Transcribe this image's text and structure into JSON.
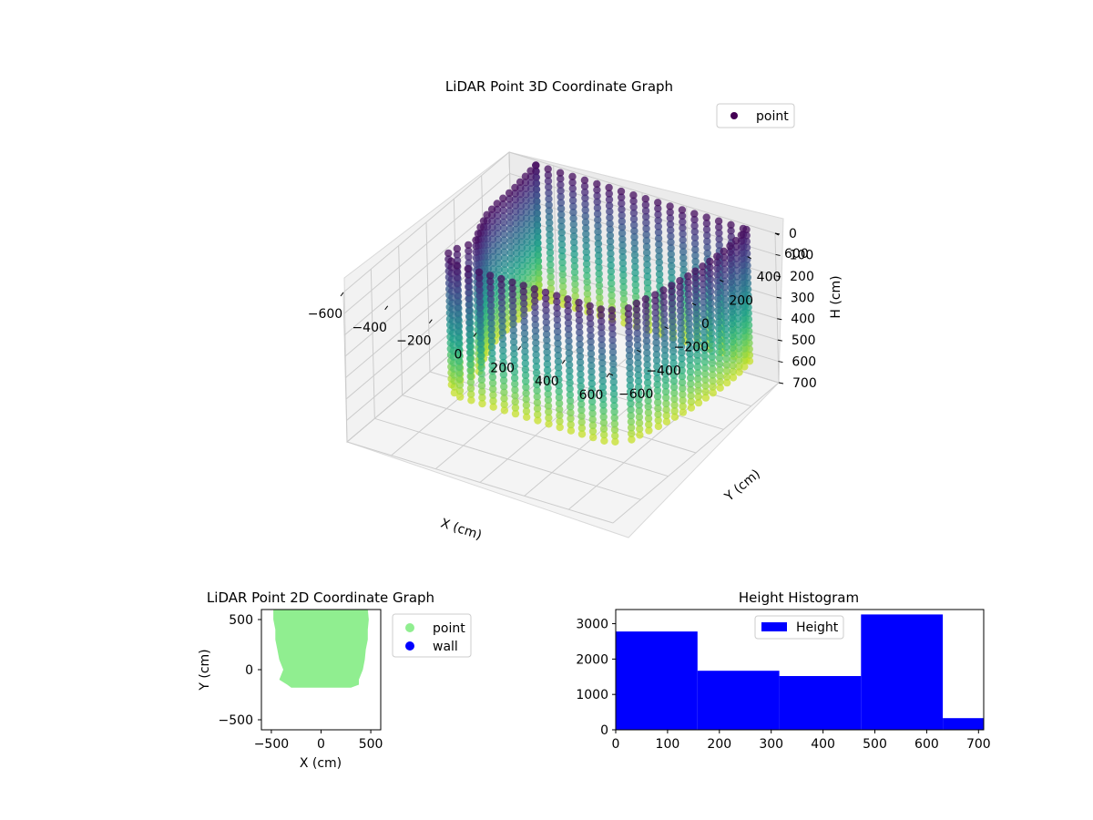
{
  "chart_data": [
    {
      "type": "scatter",
      "projection": "3d",
      "title": "LiDAR Point 3D Coordinate Graph",
      "xlabel": "X (cm)",
      "ylabel": "Y (cm)",
      "zlabel": "H (cm)",
      "xlim": [
        -600,
        600
      ],
      "ylim": [
        -600,
        600
      ],
      "zlim": [
        0,
        700
      ],
      "z_inverted": true,
      "x_ticks": [
        -600,
        -400,
        -200,
        0,
        200,
        400,
        600
      ],
      "y_ticks": [
        -600,
        -400,
        -200,
        0,
        200,
        400,
        600
      ],
      "z_ticks": [
        0,
        100,
        200,
        300,
        400,
        500,
        600,
        700
      ],
      "x_tick_labels": [
        "−600",
        "−400",
        "−200",
        "0",
        "200",
        "400",
        "600"
      ],
      "y_tick_labels": [
        "−600",
        "−400",
        "−200",
        "0",
        "200",
        "400",
        "600"
      ],
      "z_tick_labels": [
        "0",
        "100",
        "200",
        "300",
        "400",
        "500",
        "600",
        "700"
      ],
      "colormap": "viridis",
      "legend": {
        "entries": [
          "point"
        ],
        "placement": "upper-right",
        "color": "#440154"
      },
      "footprint": {
        "xmin": [
          -480,
          -470,
          -460,
          -460,
          -450,
          -420,
          -380,
          -400,
          -430,
          -420,
          -350
        ],
        "xmax": [
          470,
          480,
          480,
          470,
          460,
          440,
          420,
          400,
          390,
          380,
          300
        ],
        "y": [
          600,
          500,
          400,
          300,
          200,
          100,
          0,
          -50,
          -100,
          -150,
          -180
        ]
      },
      "grid": true
    },
    {
      "type": "scatter",
      "title": "LiDAR Point 2D Coordinate Graph",
      "xlabel": "X (cm)",
      "ylabel": "Y (cm)",
      "xlim": [
        -600,
        600
      ],
      "ylim": [
        -600,
        600
      ],
      "x_ticks": [
        -500,
        0,
        500
      ],
      "y_ticks": [
        -500,
        0,
        500
      ],
      "x_tick_labels": [
        "−500",
        "0",
        "500"
      ],
      "y_tick_labels": [
        "−500",
        "0",
        "500"
      ],
      "series": [
        {
          "name": "point",
          "color": "#90ee90",
          "region_y": [
            600,
            500,
            400,
            300,
            200,
            100,
            0,
            -50,
            -100,
            -150,
            -180
          ],
          "region_xmin": [
            -480,
            -480,
            -460,
            -460,
            -440,
            -420,
            -380,
            -400,
            -420,
            -340,
            -300
          ],
          "region_xmax": [
            470,
            480,
            470,
            470,
            450,
            440,
            420,
            400,
            380,
            380,
            300
          ]
        },
        {
          "name": "wall",
          "color": "#0000ff"
        }
      ],
      "legend": {
        "placement": "outside-right"
      },
      "grid": false
    },
    {
      "type": "bar",
      "subtype": "histogram",
      "title": "Height Histogram",
      "xlim": [
        0,
        710
      ],
      "ylim": [
        0,
        3400
      ],
      "x_ticks": [
        0,
        100,
        200,
        300,
        400,
        500,
        600,
        700
      ],
      "y_ticks": [
        0,
        1000,
        2000,
        3000
      ],
      "x_tick_labels": [
        "0",
        "100",
        "200",
        "300",
        "400",
        "500",
        "600",
        "700"
      ],
      "y_tick_labels": [
        "0",
        "1000",
        "2000",
        "3000"
      ],
      "bin_edges": [
        0,
        157.8,
        315.6,
        473.3,
        631.1,
        710
      ],
      "values": [
        2780,
        1670,
        1520,
        3260,
        330
      ],
      "series": [
        {
          "name": "Height",
          "color": "#0000ff"
        }
      ],
      "legend": {
        "placement": "upper-center"
      },
      "grid": false
    }
  ]
}
